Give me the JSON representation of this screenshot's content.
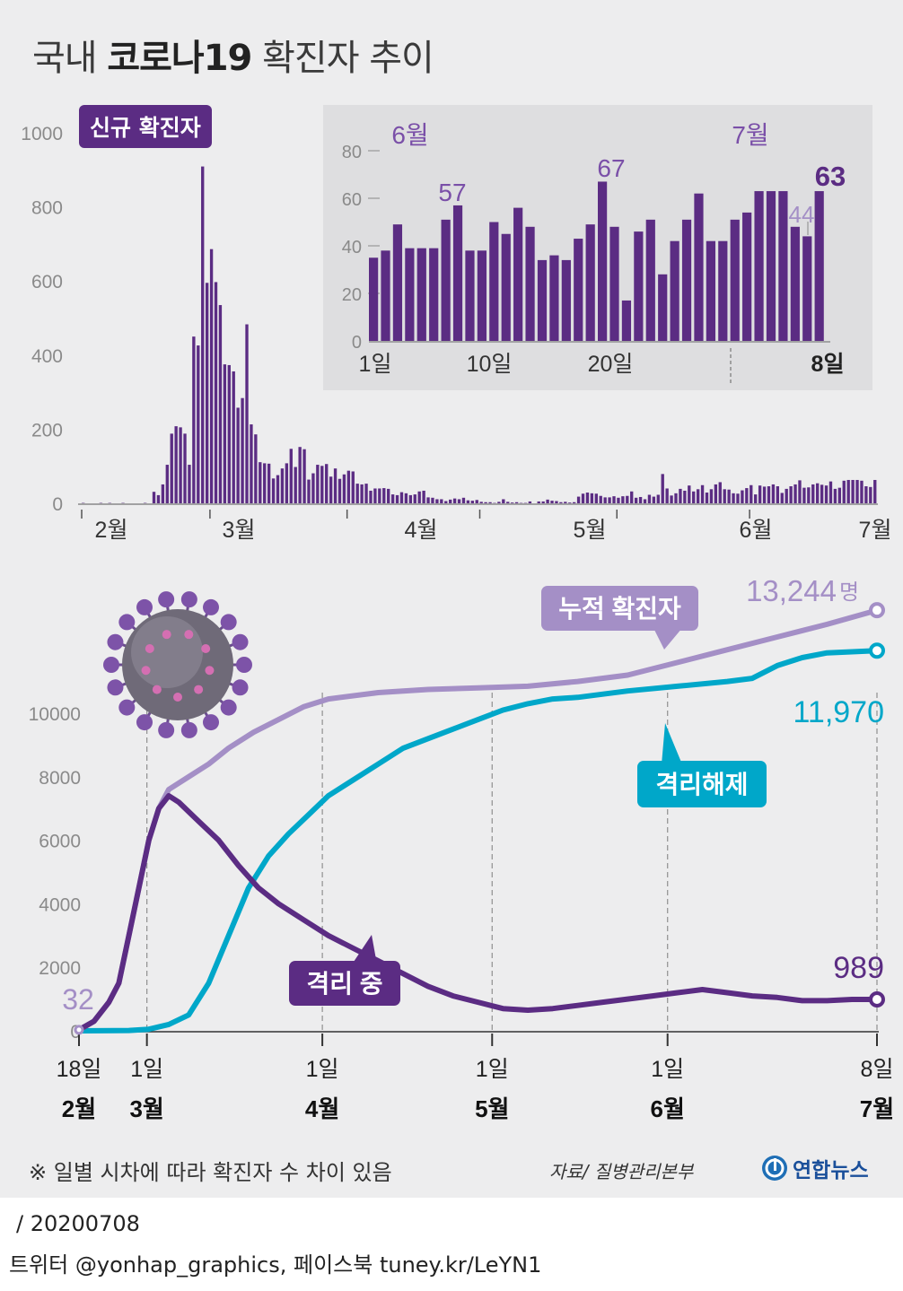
{
  "title": {
    "prefix": "국내",
    "bold": "코로나19",
    "suffix": "확진자 추이"
  },
  "colors": {
    "purple": "#5b2c83",
    "lilac": "#a48fc6",
    "cyan": "#00a7c9",
    "panel_bg": "#ededee",
    "inset_bg": "#dedee0"
  },
  "chart_data": [
    {
      "type": "bar",
      "name": "daily-new-cases",
      "label": "신규 확진자",
      "period": "2020-02-01 ~ 2020-07-08",
      "yticks": [
        0,
        200,
        400,
        600,
        800,
        1000
      ],
      "ylim": [
        0,
        1000
      ],
      "month_labels": [
        "2월",
        "3월",
        "4월",
        "5월",
        "6월",
        "7월"
      ],
      "values": [
        1,
        0,
        0,
        0,
        1,
        0,
        1,
        0,
        0,
        1,
        0,
        0,
        0,
        0,
        1,
        0,
        31,
        22,
        51,
        104,
        188,
        208,
        205,
        188,
        104,
        450,
        426,
        909,
        595,
        686,
        597,
        535,
        375,
        373,
        356,
        258,
        284,
        483,
        213,
        186,
        111,
        108,
        107,
        67,
        76,
        94,
        108,
        147,
        98,
        152,
        146,
        64,
        81,
        104,
        101,
        106,
        72,
        94,
        66,
        78,
        88,
        86,
        53,
        51,
        53,
        34,
        40,
        40,
        41,
        39,
        24,
        22,
        30,
        27,
        22,
        24,
        32,
        34,
        16,
        15,
        11,
        11,
        6,
        10,
        13,
        11,
        15,
        8,
        7,
        9,
        4,
        3,
        3,
        1,
        4,
        11,
        4,
        2,
        3,
        1,
        1,
        5,
        0,
        5,
        5,
        10,
        7,
        6,
        3,
        4,
        2,
        3,
        18,
        26,
        29,
        27,
        26,
        20,
        16,
        16,
        19,
        15,
        19,
        20,
        32,
        15,
        17,
        11,
        23,
        18,
        23,
        79,
        40,
        21,
        27,
        39,
        34,
        48,
        32,
        38,
        49,
        29,
        38,
        51,
        57,
        38,
        37,
        27,
        26,
        35,
        41,
        49,
        24,
        48,
        45,
        46,
        51,
        46,
        28,
        39,
        46,
        51,
        62,
        42,
        43,
        51,
        54,
        50,
        48,
        59,
        39,
        42,
        61,
        63,
        63,
        63,
        61,
        46,
        44,
        63
      ]
    },
    {
      "type": "bar",
      "name": "june-july-inset",
      "yticks": [
        0,
        20,
        40,
        60,
        80
      ],
      "ylim": [
        0,
        80
      ],
      "xtick_labels": [
        "1일",
        "10일",
        "20일",
        "8일"
      ],
      "month_labels": [
        "6월",
        "7월"
      ],
      "values": [
        35,
        38,
        49,
        39,
        39,
        39,
        51,
        57,
        38,
        38,
        50,
        45,
        56,
        48,
        34,
        36,
        34,
        43,
        49,
        67,
        48,
        17,
        46,
        51,
        28,
        42,
        51,
        62,
        42,
        42,
        51,
        54,
        63,
        63,
        63,
        48,
        44,
        63
      ],
      "annotations": {
        "57": "57",
        "67": "67",
        "44": "44",
        "63": "63"
      }
    },
    {
      "type": "line",
      "name": "cumulative-trend",
      "x_range": "2020-02-18 ~ 2020-07-08",
      "yticks": [
        0,
        2000,
        4000,
        6000,
        8000,
        10000
      ],
      "ylim": [
        0,
        13500
      ],
      "x_ticks": [
        {
          "day": "18일",
          "month": "2월"
        },
        {
          "day": "1일",
          "month": "3월"
        },
        {
          "day": "1일",
          "month": "4월"
        },
        {
          "day": "1일",
          "month": "5월"
        },
        {
          "day": "1일",
          "month": "6월"
        },
        {
          "day": "8일",
          "month": "7월"
        }
      ],
      "series": [
        {
          "name": "누적 확진자",
          "color": "lilac",
          "points": [
            [
              0,
              32
            ],
            [
              3,
              300
            ],
            [
              6,
              900
            ],
            [
              8,
              1500
            ],
            [
              10,
              3000
            ],
            [
              12,
              4500
            ],
            [
              14,
              6000
            ],
            [
              16,
              7000
            ],
            [
              18,
              7600
            ],
            [
              22,
              8000
            ],
            [
              26,
              8400
            ],
            [
              30,
              8900
            ],
            [
              35,
              9400
            ],
            [
              40,
              9800
            ],
            [
              45,
              10200
            ],
            [
              50,
              10450
            ],
            [
              60,
              10650
            ],
            [
              70,
              10750
            ],
            [
              80,
              10800
            ],
            [
              90,
              10850
            ],
            [
              100,
              11000
            ],
            [
              110,
              11200
            ],
            [
              120,
              11600
            ],
            [
              130,
              12000
            ],
            [
              140,
              12400
            ],
            [
              150,
              12800
            ],
            [
              160,
              13244
            ]
          ]
        },
        {
          "name": "격리해제",
          "color": "cyan",
          "points": [
            [
              0,
              0
            ],
            [
              10,
              10
            ],
            [
              14,
              50
            ],
            [
              18,
              200
            ],
            [
              22,
              500
            ],
            [
              26,
              1500
            ],
            [
              30,
              3000
            ],
            [
              34,
              4500
            ],
            [
              38,
              5500
            ],
            [
              42,
              6200
            ],
            [
              46,
              6800
            ],
            [
              50,
              7400
            ],
            [
              55,
              7900
            ],
            [
              60,
              8400
            ],
            [
              65,
              8900
            ],
            [
              70,
              9200
            ],
            [
              75,
              9500
            ],
            [
              80,
              9800
            ],
            [
              85,
              10100
            ],
            [
              90,
              10300
            ],
            [
              95,
              10450
            ],
            [
              100,
              10500
            ],
            [
              110,
              10700
            ],
            [
              120,
              10850
            ],
            [
              130,
              11000
            ],
            [
              135,
              11100
            ],
            [
              140,
              11500
            ],
            [
              145,
              11750
            ],
            [
              150,
              11900
            ],
            [
              160,
              11970
            ]
          ]
        },
        {
          "name": "격리 중",
          "color": "purple",
          "points": [
            [
              0,
              32
            ],
            [
              3,
              300
            ],
            [
              6,
              900
            ],
            [
              8,
              1500
            ],
            [
              10,
              3000
            ],
            [
              12,
              4500
            ],
            [
              14,
              6000
            ],
            [
              16,
              7000
            ],
            [
              18,
              7400
            ],
            [
              20,
              7200
            ],
            [
              24,
              6600
            ],
            [
              28,
              6000
            ],
            [
              32,
              5200
            ],
            [
              36,
              4500
            ],
            [
              40,
              4000
            ],
            [
              45,
              3500
            ],
            [
              50,
              3000
            ],
            [
              55,
              2600
            ],
            [
              60,
              2200
            ],
            [
              65,
              1800
            ],
            [
              70,
              1400
            ],
            [
              75,
              1100
            ],
            [
              80,
              900
            ],
            [
              85,
              700
            ],
            [
              90,
              650
            ],
            [
              95,
              700
            ],
            [
              100,
              800
            ],
            [
              105,
              900
            ],
            [
              110,
              1000
            ],
            [
              115,
              1100
            ],
            [
              120,
              1200
            ],
            [
              125,
              1300
            ],
            [
              130,
              1200
            ],
            [
              135,
              1100
            ],
            [
              140,
              1050
            ],
            [
              145,
              950
            ],
            [
              150,
              950
            ],
            [
              155,
              989
            ],
            [
              160,
              989
            ]
          ]
        }
      ],
      "value_labels": {
        "start": "32",
        "cumulative_end": "13,244",
        "cumulative_unit": "명",
        "released_end": "11,970",
        "isolated_end": "989"
      }
    }
  ],
  "notes": {
    "disclaimer": "※ 일별 시차에 따라 확진자 수 차이 있음",
    "source": "자료/ 질병관리본부",
    "logo_text": "연합뉴스",
    "logo_icon": "yonhap-logo-icon"
  },
  "footer": {
    "date": "/ 20200708",
    "social": "트위터 @yonhap_graphics, 페이스북 tuney.kr/LeYN1"
  }
}
